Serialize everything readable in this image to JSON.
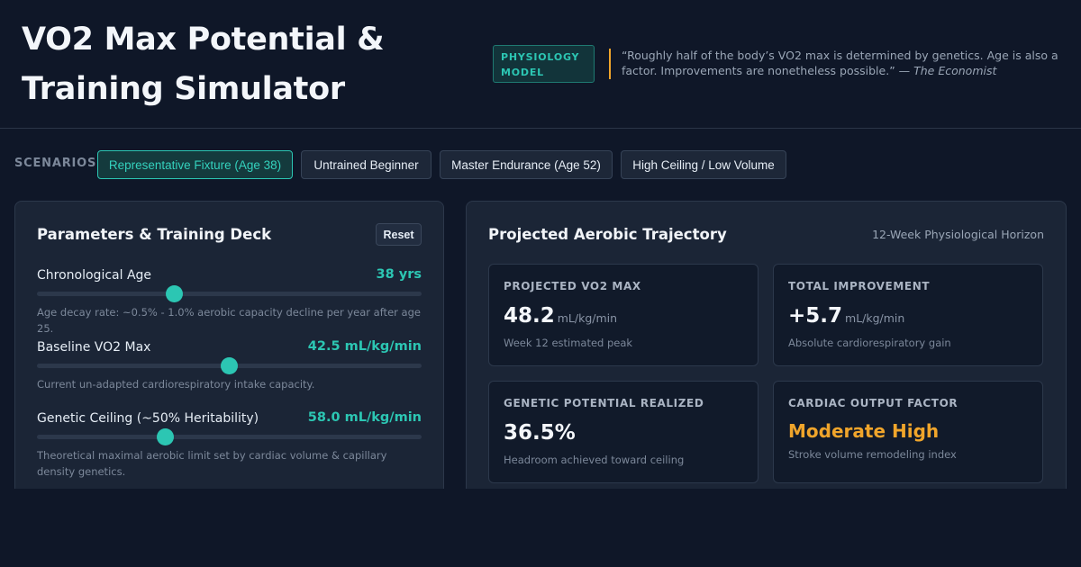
{
  "header": {
    "title": "VO2 Max Potential & Training Simulator",
    "badge": "PHYSIOLOGY MODEL",
    "quote": "“Roughly half of the body’s VO2 max is determined by genetics. Age is also a factor. Improvements are nonetheless possible.” — ",
    "quote_source": "The Economist",
    "accent_color": "#2cc6b3",
    "quote_bar_color": "#f0a52b"
  },
  "scenarios": {
    "label": "SCENARIOS:",
    "items": [
      {
        "label": "Representative Fixture (Age 38)",
        "active": true
      },
      {
        "label": "Untrained Beginner",
        "active": false
      },
      {
        "label": "Master Endurance (Age 52)",
        "active": false
      },
      {
        "label": "High Ceiling / Low Volume",
        "active": false
      }
    ]
  },
  "params_panel": {
    "title": "Parameters & Training Deck",
    "reset_label": "Reset",
    "params": [
      {
        "label": "Chronological Age",
        "value": "38 yrs",
        "slider_fraction": 0.357,
        "desc": "Age decay rate: ~0.5% - 1.0% aerobic capacity decline per year after age 25."
      },
      {
        "label": "Baseline VO2 Max",
        "value": "42.5 mL/kg/min",
        "slider_fraction": 0.5,
        "desc": "Current un-adapted cardiorespiratory intake capacity."
      },
      {
        "label": "Genetic Ceiling (~50% Heritability)",
        "value": "58.0 mL/kg/min",
        "slider_fraction": 0.333,
        "desc": "Theoretical maximal aerobic limit set by cardiac volume & capillary density genetics."
      }
    ]
  },
  "trajectory_panel": {
    "title": "Projected Aerobic Trajectory",
    "horizon": "12-Week Physiological Horizon",
    "cards": [
      {
        "label": "PROJECTED VO2 MAX",
        "value": "48.2",
        "unit": "mL/kg/min",
        "sub": "Week 12 estimated peak"
      },
      {
        "label": "TOTAL IMPROVEMENT",
        "value": "+5.7",
        "unit": "mL/kg/min",
        "sub": "Absolute cardiorespiratory gain"
      },
      {
        "label": "GENETIC POTENTIAL REALIZED",
        "value": "36.5%",
        "unit": "",
        "sub": "Headroom achieved toward ceiling"
      },
      {
        "label": "CARDIAC OUTPUT FACTOR",
        "value": "Moderate High",
        "unit": "",
        "sub": "Stroke volume remodeling index",
        "color": "#f0a52b"
      }
    ]
  }
}
